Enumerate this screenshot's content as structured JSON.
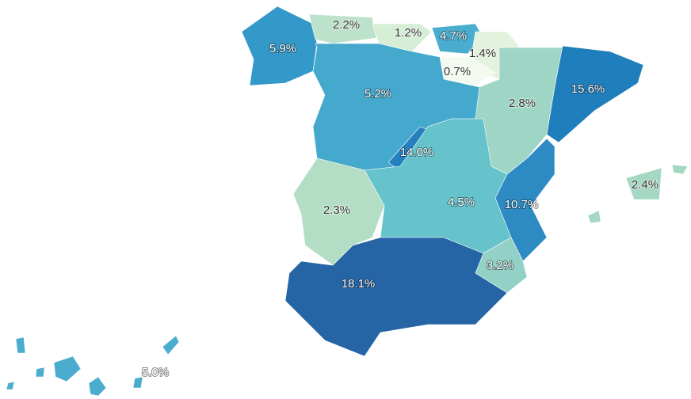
{
  "map": {
    "regions": [
      {
        "value": 5.9,
        "label": "5.9%",
        "color": "#3399c9"
      },
      {
        "value": 2.2,
        "label": "2.2%",
        "color": "#bde2cb"
      },
      {
        "value": 1.2,
        "label": "1.2%",
        "color": "#d6eed6"
      },
      {
        "value": 4.7,
        "label": "4.7%",
        "color": "#4aadcf"
      },
      {
        "value": 1.4,
        "label": "1.4%",
        "color": "#e3f2dd"
      },
      {
        "value": 0.7,
        "label": "0.7%",
        "color": "#f3faf0"
      },
      {
        "value": 5.2,
        "label": "5.2%",
        "color": "#45a8cd"
      },
      {
        "value": 2.8,
        "label": "2.8%",
        "color": "#9fd5c5"
      },
      {
        "value": 15.6,
        "label": "15.6%",
        "color": "#1f7ebc"
      },
      {
        "value": 14.0,
        "label": "14.0%",
        "color": "#2580bf"
      },
      {
        "value": 2.3,
        "label": "2.3%",
        "color": "#b3dec5"
      },
      {
        "value": 4.5,
        "label": "4.5%",
        "color": "#66c3cb"
      },
      {
        "value": 10.7,
        "label": "10.7%",
        "color": "#2d8ac3"
      },
      {
        "value": 2.4,
        "label": "2.4%",
        "color": "#a5d8c3"
      },
      {
        "value": 3.2,
        "label": "3.2%",
        "color": "#93d0c6"
      },
      {
        "value": 18.1,
        "label": "18.1%",
        "color": "#2565a6"
      },
      {
        "value": 5.0,
        "label": "5.0%",
        "color": "#4aadcf"
      }
    ]
  }
}
